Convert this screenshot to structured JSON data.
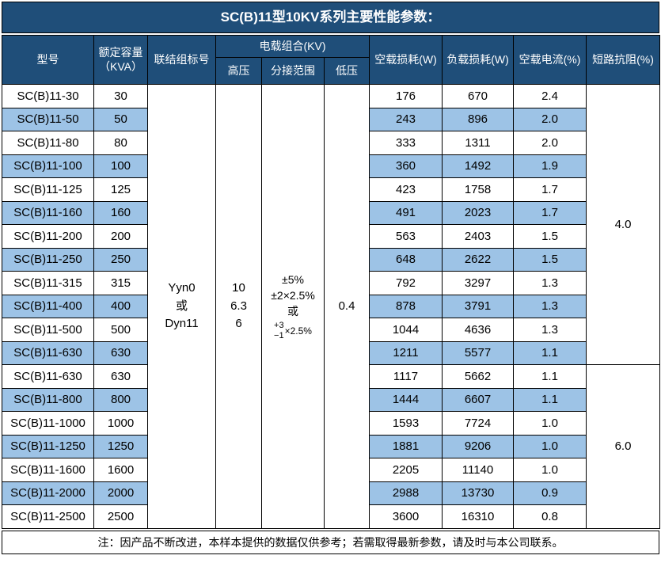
{
  "title": "SC(B)11型10KV系列主要性能参数：",
  "columns": {
    "model": "型号",
    "capacity_line1": "额定容量",
    "capacity_line2": "（KVA）",
    "connection": "联结组标号",
    "voltage_group": "电载组合(KV)",
    "hv": "高压",
    "tap_range": "分接范围",
    "lv": "低压",
    "no_load_loss": "空载损耗(W)",
    "load_loss": "负载损耗(W)",
    "no_load_current": "空载电流(%)",
    "impedance": "短路抗阻(%)"
  },
  "merged_cells": {
    "connection_lines": [
      "Yyn0",
      "或",
      "Dyn11"
    ],
    "hv_lines": [
      "10",
      "6.3",
      "6"
    ],
    "tap_lines": [
      "±5%",
      "±2×2.5%",
      "或"
    ],
    "tap_fraction": {
      "top": "+3",
      "bottom": "−1",
      "multiplier": "×2.5%"
    },
    "lv": "0.4",
    "impedance_groups": [
      {
        "value": "4.0",
        "row_span": 12
      },
      {
        "value": "6.0",
        "row_span": 7
      }
    ]
  },
  "rows": [
    {
      "model": "SC(B)11-30",
      "capacity": "30",
      "no_load_loss": "176",
      "load_loss": "670",
      "no_load_current": "2.4"
    },
    {
      "model": "SC(B)11-50",
      "capacity": "50",
      "no_load_loss": "243",
      "load_loss": "896",
      "no_load_current": "2.0"
    },
    {
      "model": "SC(B)11-80",
      "capacity": "80",
      "no_load_loss": "333",
      "load_loss": "1311",
      "no_load_current": "2.0"
    },
    {
      "model": "SC(B)11-100",
      "capacity": "100",
      "no_load_loss": "360",
      "load_loss": "1492",
      "no_load_current": "1.9"
    },
    {
      "model": "SC(B)11-125",
      "capacity": "125",
      "no_load_loss": "423",
      "load_loss": "1758",
      "no_load_current": "1.7"
    },
    {
      "model": "SC(B)11-160",
      "capacity": "160",
      "no_load_loss": "491",
      "load_loss": "2023",
      "no_load_current": "1.7"
    },
    {
      "model": "SC(B)11-200",
      "capacity": "200",
      "no_load_loss": "563",
      "load_loss": "2403",
      "no_load_current": "1.5"
    },
    {
      "model": "SC(B)11-250",
      "capacity": "250",
      "no_load_loss": "648",
      "load_loss": "2622",
      "no_load_current": "1.5"
    },
    {
      "model": "SC(B)11-315",
      "capacity": "315",
      "no_load_loss": "792",
      "load_loss": "3297",
      "no_load_current": "1.3"
    },
    {
      "model": "SC(B)11-400",
      "capacity": "400",
      "no_load_loss": "878",
      "load_loss": "3791",
      "no_load_current": "1.3"
    },
    {
      "model": "SC(B)11-500",
      "capacity": "500",
      "no_load_loss": "1044",
      "load_loss": "4636",
      "no_load_current": "1.3"
    },
    {
      "model": "SC(B)11-630",
      "capacity": "630",
      "no_load_loss": "1211",
      "load_loss": "5577",
      "no_load_current": "1.1"
    },
    {
      "model": "SC(B)11-630",
      "capacity": "630",
      "no_load_loss": "1117",
      "load_loss": "5662",
      "no_load_current": "1.1"
    },
    {
      "model": "SC(B)11-800",
      "capacity": "800",
      "no_load_loss": "1444",
      "load_loss": "6607",
      "no_load_current": "1.1"
    },
    {
      "model": "SC(B)11-1000",
      "capacity": "1000",
      "no_load_loss": "1593",
      "load_loss": "7724",
      "no_load_current": "1.0"
    },
    {
      "model": "SC(B)11-1250",
      "capacity": "1250",
      "no_load_loss": "1881",
      "load_loss": "9206",
      "no_load_current": "1.0"
    },
    {
      "model": "SC(B)11-1600",
      "capacity": "1600",
      "no_load_loss": "2205",
      "load_loss": "11140",
      "no_load_current": "1.0"
    },
    {
      "model": "SC(B)11-2000",
      "capacity": "2000",
      "no_load_loss": "2988",
      "load_loss": "13730",
      "no_load_current": "0.9"
    },
    {
      "model": "SC(B)11-2500",
      "capacity": "2500",
      "no_load_loss": "3600",
      "load_loss": "16310",
      "no_load_current": "0.8"
    }
  ],
  "note": "注：因产品不断改进，本样本提供的数据仅供参考；若需取得最新参数，请及时与本公司联系。",
  "colors": {
    "header_bg": "#1F4E79",
    "header_text": "#FFFFFF",
    "row_bg": "#FFFFFF",
    "row_alt_bg": "#9DC3E6",
    "border": "#000000",
    "text": "#000000"
  }
}
